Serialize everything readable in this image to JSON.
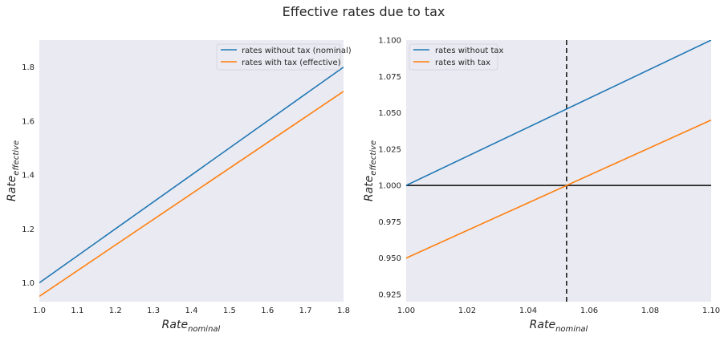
{
  "figure": {
    "title": "Effective rates due to tax",
    "background": "#ffffff",
    "axes_face": "#eaeaf2"
  },
  "colors": {
    "blue": "#1f77b4",
    "orange": "#ff7f0e",
    "reference": "#262626"
  },
  "chart_data": [
    {
      "type": "line",
      "xlabel_main": "Rate",
      "xlabel_sub": "nominal",
      "ylabel_main": "Rate",
      "ylabel_sub": "effective",
      "xlim": [
        1.0,
        1.8
      ],
      "ylim": [
        0.93,
        1.9
      ],
      "xticks": [
        1.0,
        1.1,
        1.2,
        1.3,
        1.4,
        1.5,
        1.6,
        1.7,
        1.8
      ],
      "xtick_labels": [
        "1.0",
        "1.1",
        "1.2",
        "1.3",
        "1.4",
        "1.5",
        "1.6",
        "1.7",
        "1.8"
      ],
      "yticks": [
        1.0,
        1.2,
        1.4,
        1.6,
        1.8
      ],
      "ytick_labels": [
        "1.0",
        "1.2",
        "1.4",
        "1.6",
        "1.8"
      ],
      "grid": false,
      "legend_position": "top-right",
      "series": [
        {
          "name": "rates without tax (nominal)",
          "color": "#1f77b4",
          "x": [
            1.0,
            1.8
          ],
          "y": [
            1.0,
            1.8
          ]
        },
        {
          "name": "rates with tax (effective)",
          "color": "#ff7f0e",
          "x": [
            1.0,
            1.8
          ],
          "y": [
            0.95,
            1.71
          ]
        }
      ]
    },
    {
      "type": "line",
      "xlabel_main": "Rate",
      "xlabel_sub": "nominal",
      "ylabel_main": "Rate",
      "ylabel_sub": "effective",
      "xlim": [
        1.0,
        1.1
      ],
      "ylim": [
        0.92,
        1.1
      ],
      "xticks": [
        1.0,
        1.02,
        1.04,
        1.06,
        1.08,
        1.1
      ],
      "xtick_labels": [
        "1.00",
        "1.02",
        "1.04",
        "1.06",
        "1.08",
        "1.10"
      ],
      "yticks": [
        0.925,
        0.95,
        0.975,
        1.0,
        1.025,
        1.05,
        1.075,
        1.1
      ],
      "ytick_labels": [
        "0.925",
        "0.950",
        "0.975",
        "1.000",
        "1.025",
        "1.050",
        "1.075",
        "1.100"
      ],
      "grid": false,
      "legend_position": "top-left",
      "series": [
        {
          "name": "rates without tax",
          "color": "#1f77b4",
          "x": [
            1.0,
            1.1
          ],
          "y": [
            1.0,
            1.1
          ]
        },
        {
          "name": "rates with tax",
          "color": "#ff7f0e",
          "x": [
            1.0,
            1.1
          ],
          "y": [
            0.95,
            1.045
          ]
        }
      ],
      "reference_lines": [
        {
          "orientation": "horizontal",
          "value": 1.0,
          "style": "solid",
          "color": "#262626"
        },
        {
          "orientation": "vertical",
          "value": 1.0526,
          "style": "dashed",
          "color": "#262626"
        }
      ]
    }
  ]
}
